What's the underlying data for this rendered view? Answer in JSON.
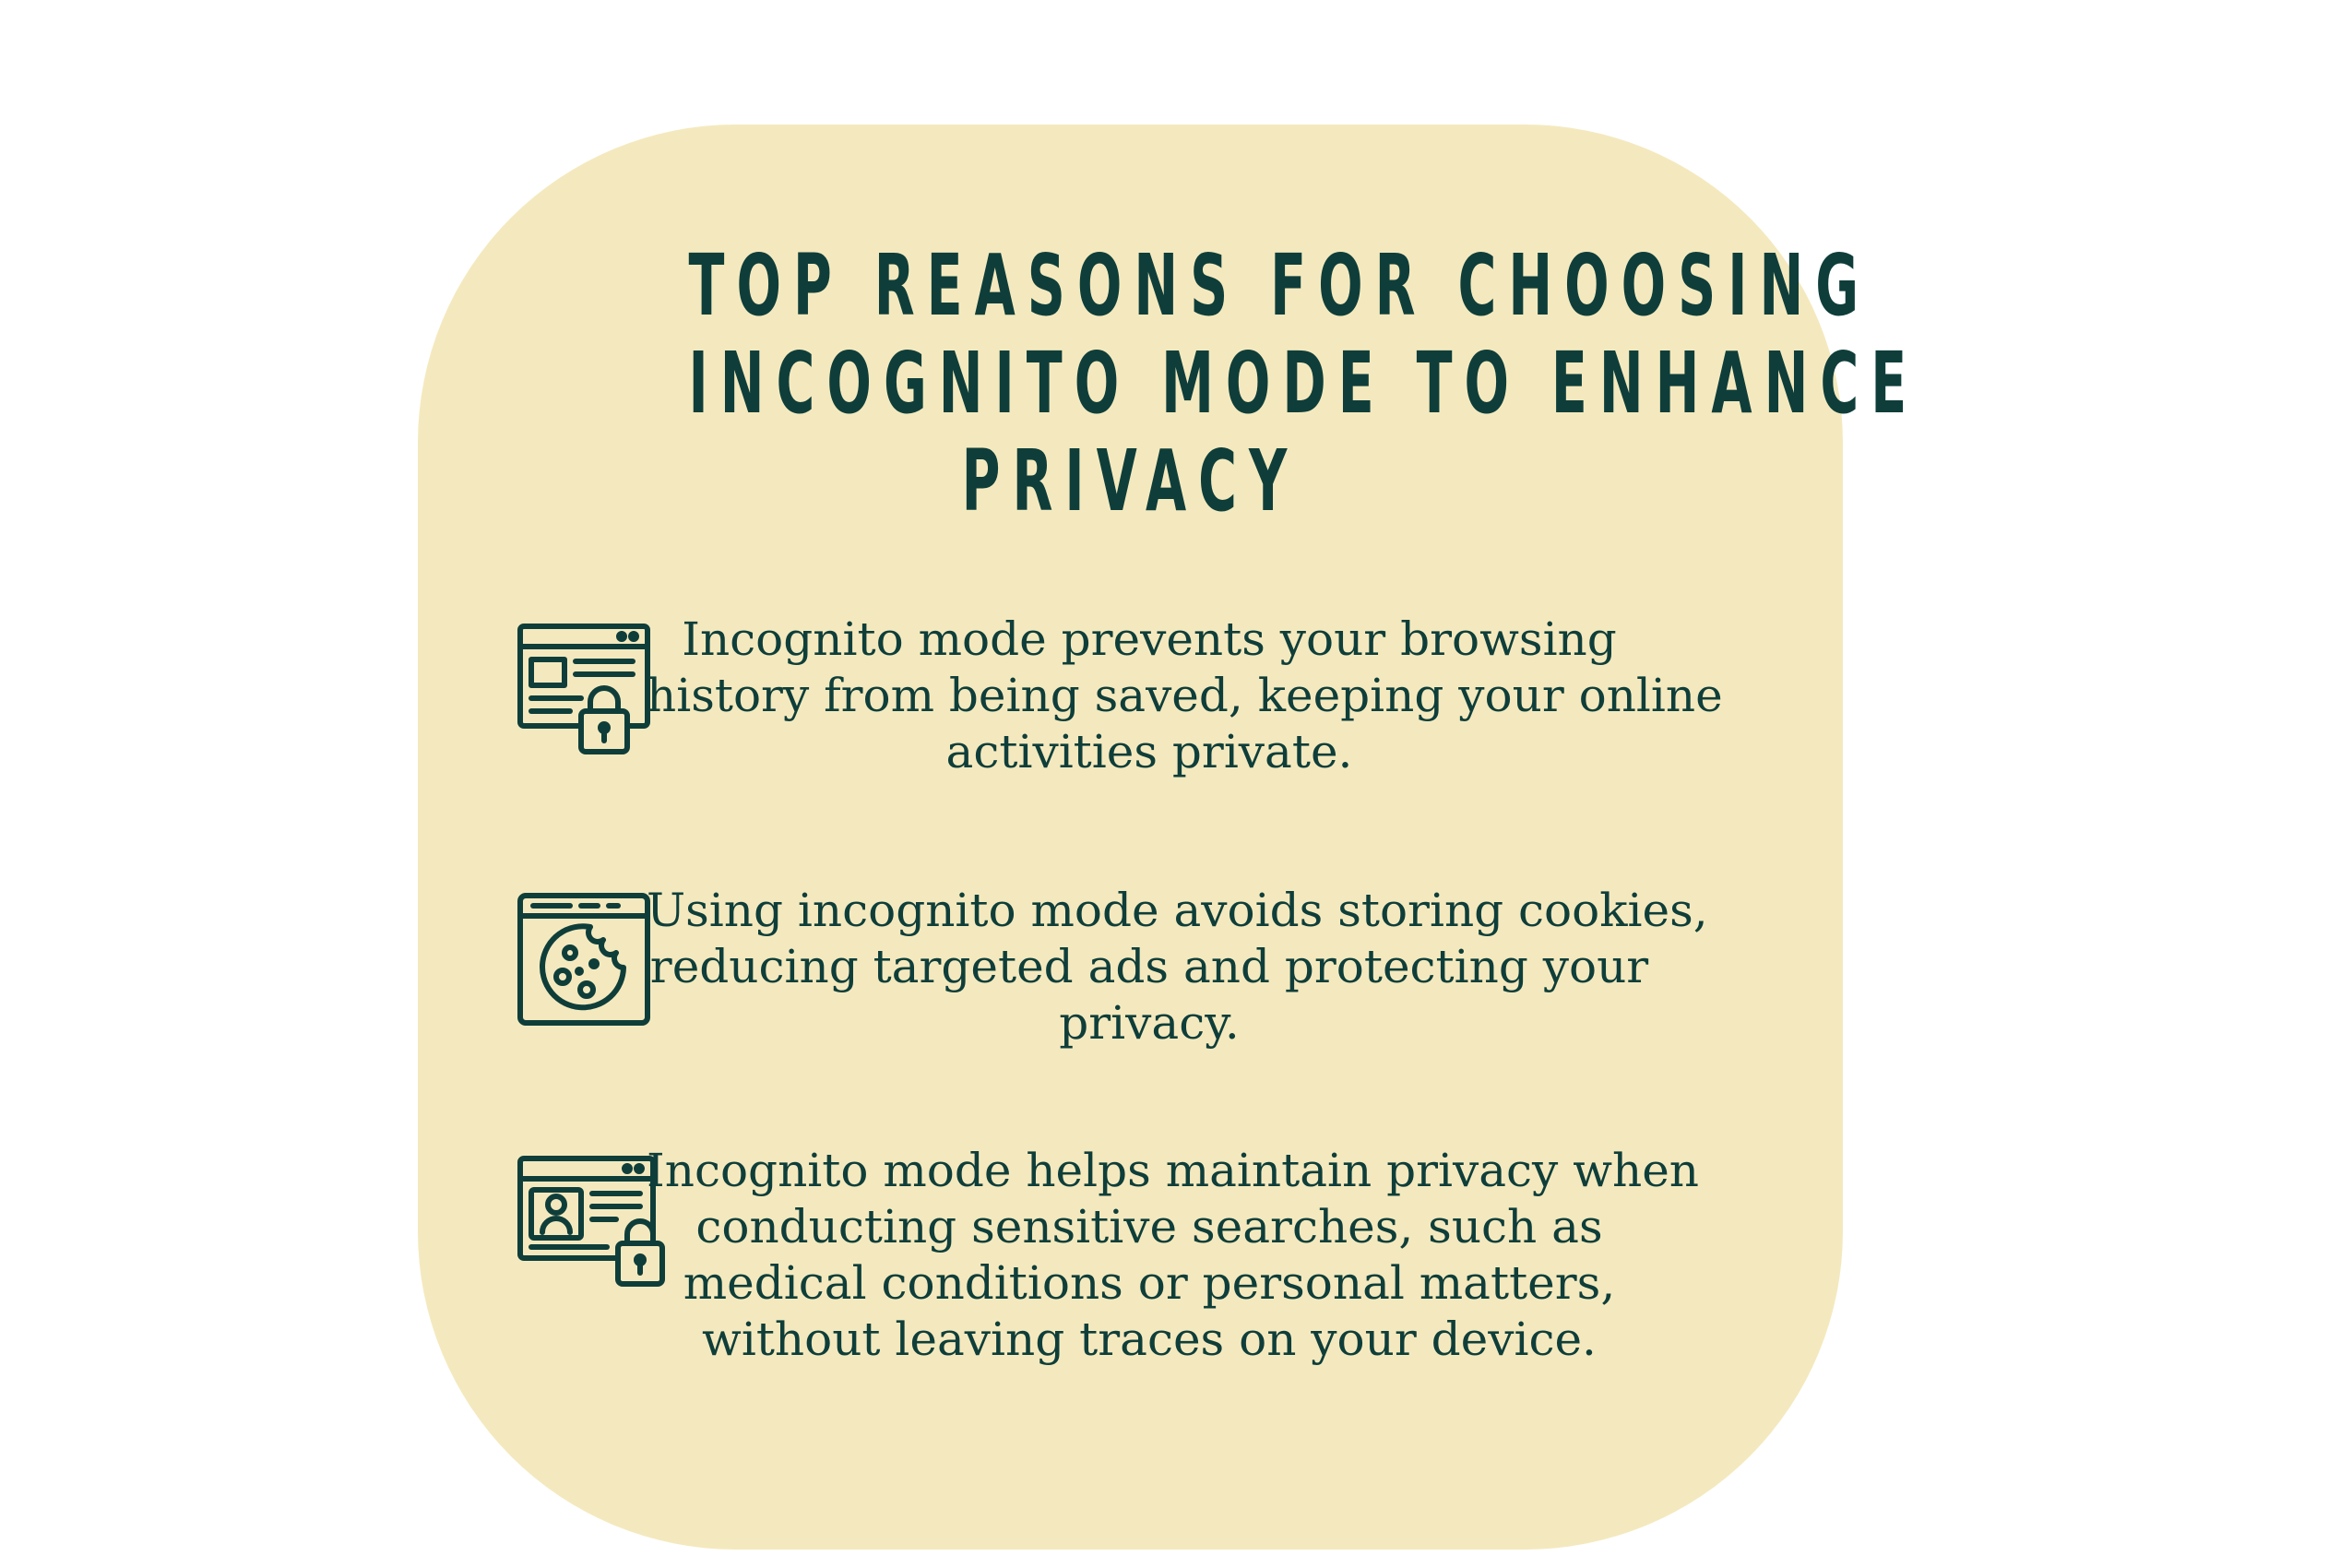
{
  "card": {
    "title_lines": [
      "Top Reasons for Choosing",
      "Incognito Mode to Enhance",
      "Privacy"
    ],
    "accent_color": "#0f3e3a",
    "background_color": "#f4e9be"
  },
  "reasons": [
    {
      "icon": "browser-lock-icon",
      "lines": [
        "Incognito mode prevents your browsing",
        "history from being saved, keeping your online",
        "activities private."
      ]
    },
    {
      "icon": "browser-cookie-icon",
      "lines": [
        "Using incognito mode avoids storing cookies,",
        "reducing targeted ads and protecting your",
        "privacy."
      ]
    },
    {
      "icon": "browser-profile-lock-icon",
      "lines": [
        "Incognito mode helps maintain privacy when",
        "conducting sensitive searches, such as",
        "medical conditions or personal matters,",
        "without leaving traces on your device."
      ]
    }
  ]
}
